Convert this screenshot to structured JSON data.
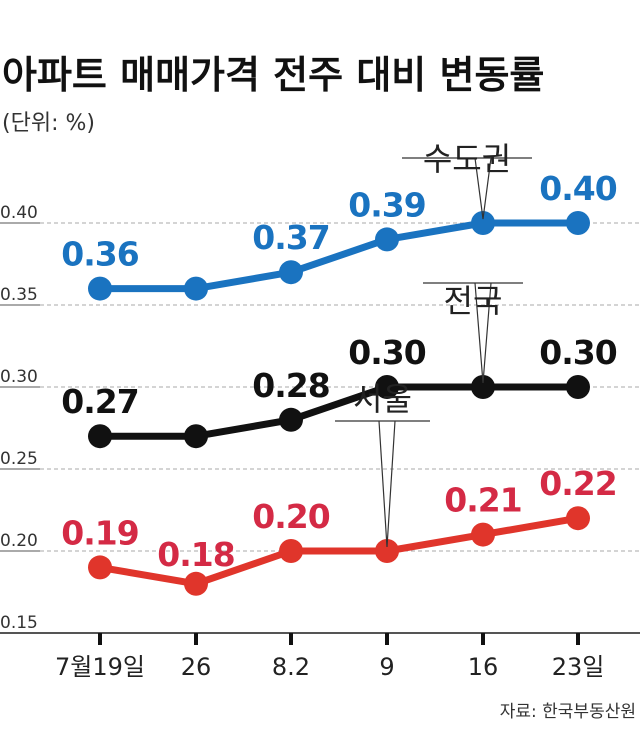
{
  "chart_data": {
    "type": "line",
    "title": "아파트 매매가격 전주 대비 변동률",
    "unit_label": "(단위: %)",
    "source": "자료: 한국부동산원",
    "categories": [
      "7월19일",
      "26",
      "8.2",
      "9",
      "16",
      "23일"
    ],
    "ylim": [
      0.15,
      0.42
    ],
    "yticks": [
      0.4,
      0.35,
      0.3,
      0.25,
      0.2,
      0.15
    ],
    "ytick_labels": [
      "0.40",
      "0.35",
      "0.30",
      "0.25",
      "0.20",
      "0.15"
    ],
    "grid": true,
    "series": [
      {
        "name": "수도권",
        "color": "#1a73c0",
        "values": [
          0.36,
          0.36,
          0.37,
          0.39,
          0.4,
          0.4
        ],
        "labels": [
          "0.36",
          "",
          "0.37",
          "0.39",
          "",
          "0.40"
        ],
        "callout_index": 4
      },
      {
        "name": "전국",
        "color": "#111111",
        "values": [
          0.27,
          0.27,
          0.28,
          0.3,
          0.3,
          0.3
        ],
        "labels": [
          "0.27",
          "",
          "0.28",
          "0.30",
          "",
          "0.30"
        ],
        "callout_index": 4
      },
      {
        "name": "서울",
        "color": "#e0352b",
        "label_color": "#d42a45",
        "values": [
          0.19,
          0.18,
          0.2,
          0.2,
          0.21,
          0.22
        ],
        "labels": [
          "0.19",
          "0.18",
          "0.20",
          "",
          "0.21",
          "0.22"
        ],
        "callout_index": 3
      }
    ]
  }
}
